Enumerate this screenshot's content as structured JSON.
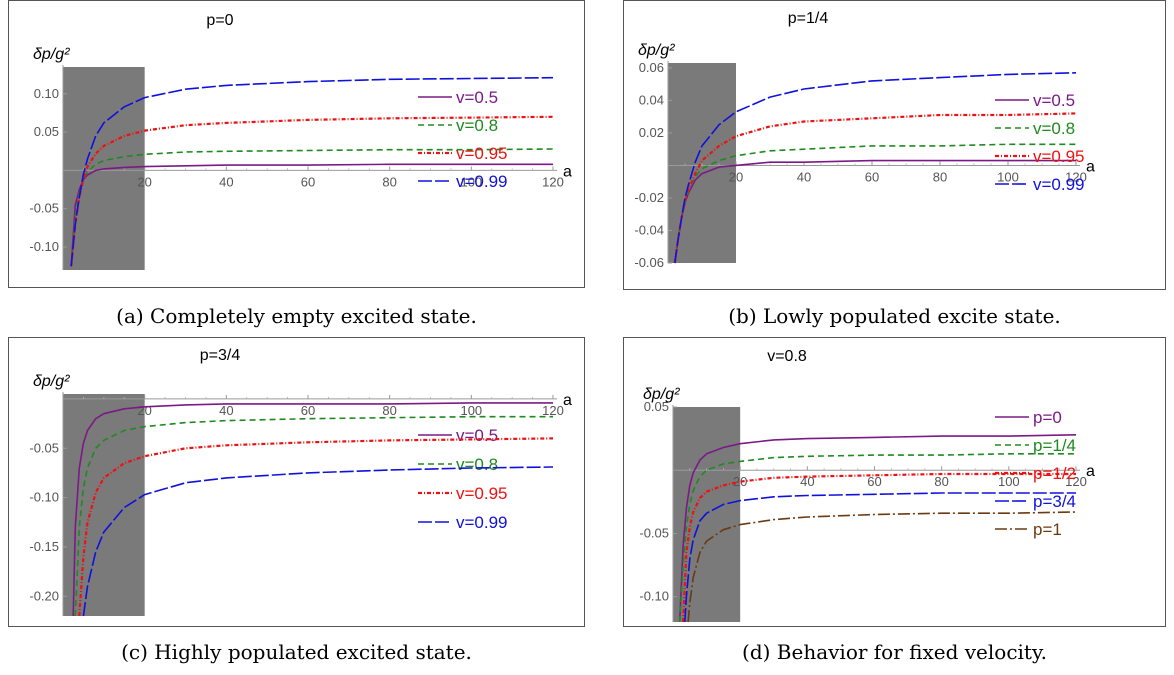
{
  "captions": [
    "(a) Completely empty excited state.",
    "(b) Lowly populated excite state.",
    "(c) Highly populated excited state.",
    "(d) Behavior for fixed velocity."
  ],
  "chart_data": [
    {
      "type": "line",
      "title": "p=0",
      "ylabel": "δp/g²",
      "xlabel": "a",
      "xlim": [
        0,
        120
      ],
      "ylim": [
        -0.13,
        0.135
      ],
      "xticks": [
        20,
        40,
        60,
        80,
        100,
        120
      ],
      "yticks": [
        0.1,
        0.05,
        -0.05,
        -0.1
      ],
      "ytick_labels": [
        "0.10",
        "0.05",
        "-0.05",
        "-0.10"
      ],
      "shaded_region": [
        0,
        20
      ],
      "series": [
        {
          "name": "v=0.5",
          "color": "#7b1a86",
          "dash": "solid",
          "x": [
            2,
            3,
            4,
            5,
            6,
            8,
            10,
            15,
            20,
            30,
            40,
            60,
            80,
            100,
            120
          ],
          "y": [
            -0.125,
            -0.045,
            -0.025,
            -0.012,
            -0.006,
            0.0,
            0.002,
            0.004,
            0.005,
            0.006,
            0.007,
            0.007,
            0.008,
            0.008,
            0.008
          ]
        },
        {
          "name": "v=0.8",
          "color": "#1f8a1f",
          "dash": "6,4",
          "x": [
            2,
            3,
            4,
            5,
            6,
            8,
            10,
            15,
            20,
            30,
            40,
            60,
            80,
            100,
            120
          ],
          "y": [
            -0.125,
            -0.06,
            -0.03,
            -0.012,
            -0.002,
            0.008,
            0.013,
            0.018,
            0.021,
            0.024,
            0.025,
            0.026,
            0.027,
            0.027,
            0.028
          ]
        },
        {
          "name": "v=0.95",
          "color": "#ee1111",
          "dash": "4,2,1,2",
          "x": [
            2,
            3,
            4,
            5,
            6,
            8,
            10,
            15,
            20,
            30,
            40,
            60,
            80,
            100,
            120
          ],
          "y": [
            -0.125,
            -0.07,
            -0.035,
            -0.012,
            0.005,
            0.022,
            0.032,
            0.045,
            0.052,
            0.059,
            0.062,
            0.066,
            0.068,
            0.069,
            0.07
          ]
        },
        {
          "name": "v=0.99",
          "color": "#1111dd",
          "dash": "14,3",
          "x": [
            2,
            3,
            4,
            5,
            6,
            8,
            10,
            15,
            20,
            30,
            40,
            60,
            80,
            100,
            120
          ],
          "y": [
            -0.125,
            -0.07,
            -0.035,
            -0.005,
            0.015,
            0.045,
            0.062,
            0.083,
            0.095,
            0.106,
            0.111,
            0.116,
            0.119,
            0.12,
            0.121
          ]
        }
      ]
    },
    {
      "type": "line",
      "title": "p=1/4",
      "ylabel": "δp/g²",
      "xlabel": "a",
      "xlim": [
        0,
        120
      ],
      "ylim": [
        -0.06,
        0.063
      ],
      "xticks": [
        20,
        40,
        60,
        80,
        100,
        120
      ],
      "yticks": [
        0.06,
        0.04,
        0.02,
        -0.02,
        -0.04,
        -0.06
      ],
      "ytick_labels": [
        "0.06",
        "0.04",
        "0.02",
        "-0.02",
        "-0.04",
        "-0.06"
      ],
      "shaded_region": [
        0,
        20
      ],
      "series": [
        {
          "name": "v=0.5",
          "color": "#7b1a86",
          "dash": "solid",
          "x": [
            2,
            3,
            4,
            5,
            6,
            8,
            10,
            15,
            20,
            30,
            40,
            60,
            80,
            100,
            120
          ],
          "y": [
            -0.06,
            -0.045,
            -0.032,
            -0.023,
            -0.017,
            -0.009,
            -0.005,
            -0.001,
            0.0,
            0.002,
            0.002,
            0.003,
            0.003,
            0.003,
            0.003
          ]
        },
        {
          "name": "v=0.8",
          "color": "#1f8a1f",
          "dash": "6,4",
          "x": [
            2,
            3,
            4,
            5,
            6,
            8,
            10,
            15,
            20,
            30,
            40,
            60,
            80,
            100,
            120
          ],
          "y": [
            -0.06,
            -0.045,
            -0.032,
            -0.023,
            -0.016,
            -0.007,
            -0.002,
            0.003,
            0.006,
            0.009,
            0.01,
            0.012,
            0.012,
            0.013,
            0.013
          ]
        },
        {
          "name": "v=0.95",
          "color": "#ee1111",
          "dash": "4,2,1,2",
          "x": [
            2,
            3,
            4,
            5,
            6,
            8,
            10,
            15,
            20,
            30,
            40,
            60,
            80,
            100,
            120
          ],
          "y": [
            -0.06,
            -0.045,
            -0.032,
            -0.022,
            -0.015,
            -0.005,
            0.003,
            0.012,
            0.018,
            0.024,
            0.027,
            0.029,
            0.031,
            0.031,
            0.032
          ]
        },
        {
          "name": "v=0.99",
          "color": "#1111dd",
          "dash": "14,3",
          "x": [
            2,
            3,
            4,
            5,
            6,
            8,
            10,
            15,
            20,
            30,
            40,
            60,
            80,
            100,
            120
          ],
          "y": [
            -0.06,
            -0.045,
            -0.032,
            -0.02,
            -0.012,
            0.002,
            0.012,
            0.025,
            0.033,
            0.042,
            0.047,
            0.052,
            0.054,
            0.056,
            0.057
          ]
        }
      ]
    },
    {
      "type": "line",
      "title": "p=3/4",
      "ylabel": "δp/g²",
      "xlabel": "a",
      "xlim": [
        0,
        120
      ],
      "ylim": [
        -0.22,
        0.005
      ],
      "xticks": [
        20,
        40,
        60,
        80,
        100,
        120
      ],
      "yticks": [
        -0.05,
        -0.1,
        -0.15,
        -0.2
      ],
      "ytick_labels": [
        "-0.05",
        "-0.10",
        "-0.15",
        "-0.20"
      ],
      "shaded_region": [
        0,
        20
      ],
      "series": [
        {
          "name": "v=0.5",
          "color": "#7b1a86",
          "dash": "solid",
          "x": [
            2.5,
            3,
            4,
            5,
            6,
            8,
            10,
            15,
            20,
            30,
            40,
            60,
            80,
            100,
            120
          ],
          "y": [
            -0.22,
            -0.13,
            -0.07,
            -0.045,
            -0.032,
            -0.02,
            -0.015,
            -0.01,
            -0.008,
            -0.006,
            -0.005,
            -0.005,
            -0.005,
            -0.004,
            -0.004
          ]
        },
        {
          "name": "v=0.8",
          "color": "#1f8a1f",
          "dash": "6,4",
          "x": [
            3,
            4,
            5,
            6,
            8,
            10,
            15,
            20,
            30,
            40,
            60,
            80,
            100,
            120
          ],
          "y": [
            -0.22,
            -0.13,
            -0.09,
            -0.07,
            -0.05,
            -0.042,
            -0.032,
            -0.028,
            -0.024,
            -0.022,
            -0.02,
            -0.019,
            -0.018,
            -0.018
          ]
        },
        {
          "name": "v=0.95",
          "color": "#ee1111",
          "dash": "4,2,1,2",
          "x": [
            4,
            5,
            6,
            8,
            10,
            15,
            20,
            30,
            40,
            60,
            80,
            100,
            120
          ],
          "y": [
            -0.22,
            -0.16,
            -0.125,
            -0.095,
            -0.08,
            -0.065,
            -0.058,
            -0.05,
            -0.047,
            -0.044,
            -0.042,
            -0.041,
            -0.04
          ]
        },
        {
          "name": "v=0.99",
          "color": "#1111dd",
          "dash": "14,3",
          "x": [
            5,
            6,
            8,
            10,
            15,
            20,
            30,
            40,
            60,
            80,
            100,
            120
          ],
          "y": [
            -0.22,
            -0.19,
            -0.155,
            -0.135,
            -0.11,
            -0.097,
            -0.085,
            -0.08,
            -0.075,
            -0.072,
            -0.07,
            -0.069
          ]
        }
      ]
    },
    {
      "type": "line",
      "title": "v=0.8",
      "ylabel": "δp/g²",
      "xlabel": "a",
      "xlim": [
        0,
        120
      ],
      "ylim": [
        -0.12,
        0.05
      ],
      "xticks": [
        20,
        40,
        60,
        80,
        100,
        120
      ],
      "yticks": [
        0.05,
        -0.05,
        -0.1
      ],
      "ytick_labels": [
        "0.05",
        "-0.05",
        "-0.10"
      ],
      "shaded_region": [
        0,
        20
      ],
      "series": [
        {
          "name": "p=0",
          "color": "#7b1a86",
          "dash": "solid",
          "x": [
            2,
            3,
            4,
            5,
            6,
            8,
            10,
            15,
            20,
            30,
            40,
            60,
            80,
            100,
            120
          ],
          "y": [
            -0.12,
            -0.06,
            -0.03,
            -0.012,
            -0.002,
            0.008,
            0.013,
            0.018,
            0.021,
            0.024,
            0.025,
            0.026,
            0.027,
            0.027,
            0.028
          ]
        },
        {
          "name": "p=1/4",
          "color": "#1f8a1f",
          "dash": "6,4",
          "x": [
            2,
            3,
            4,
            5,
            6,
            8,
            10,
            15,
            20,
            30,
            40,
            60,
            80,
            100,
            120
          ],
          "y": [
            -0.12,
            -0.075,
            -0.045,
            -0.027,
            -0.016,
            -0.005,
            0.0,
            0.005,
            0.007,
            0.01,
            0.011,
            0.012,
            0.012,
            0.013,
            0.013
          ]
        },
        {
          "name": "p=1/2",
          "color": "#ee1111",
          "dash": "4,2,1,2",
          "x": [
            3,
            4,
            5,
            6,
            8,
            10,
            15,
            20,
            30,
            40,
            60,
            80,
            100,
            120
          ],
          "y": [
            -0.12,
            -0.065,
            -0.045,
            -0.033,
            -0.022,
            -0.017,
            -0.012,
            -0.009,
            -0.006,
            -0.005,
            -0.004,
            -0.003,
            -0.003,
            -0.003
          ]
        },
        {
          "name": "p=3/4",
          "color": "#1111dd",
          "dash": "14,3",
          "x": [
            3.5,
            4,
            5,
            6,
            8,
            10,
            15,
            20,
            30,
            40,
            60,
            80,
            100,
            120
          ],
          "y": [
            -0.12,
            -0.1,
            -0.07,
            -0.055,
            -0.04,
            -0.034,
            -0.027,
            -0.024,
            -0.021,
            -0.02,
            -0.019,
            -0.018,
            -0.018,
            -0.018
          ]
        },
        {
          "name": "p=1",
          "color": "#6b3a10",
          "dash": "12,3,2,3",
          "x": [
            4.5,
            5,
            6,
            8,
            10,
            15,
            20,
            30,
            40,
            60,
            80,
            100,
            120
          ],
          "y": [
            -0.12,
            -0.105,
            -0.085,
            -0.065,
            -0.056,
            -0.047,
            -0.043,
            -0.039,
            -0.037,
            -0.035,
            -0.034,
            -0.034,
            -0.033
          ]
        }
      ]
    }
  ]
}
